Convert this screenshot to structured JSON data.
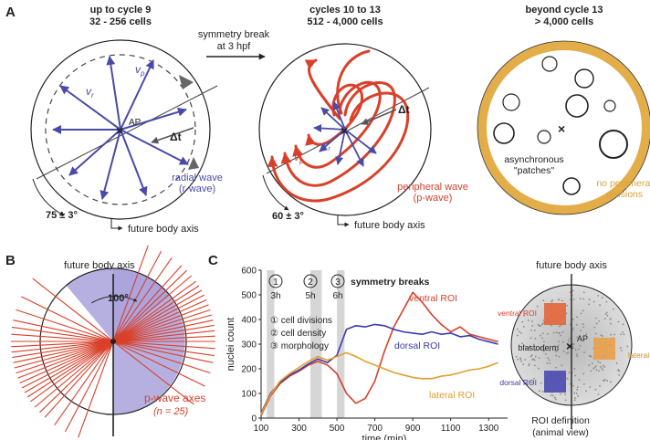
{
  "panel_a": {
    "letter": "A",
    "stage1": {
      "title": "up to cycle 9",
      "subtitle": "32 - 256 cells",
      "vr": "v",
      "vr_sub": "r",
      "vp": "v",
      "vp_sub": "p",
      "ap": "AP",
      "dt": "Δt",
      "wave1": "radial wave",
      "wave2": "(r-wave)",
      "angle": "75 ± 3°",
      "axis": "future body axis"
    },
    "transition": {
      "line1": "symmetry break",
      "line2": "at 3 hpf"
    },
    "stage2": {
      "title": "cycles 10 to 13",
      "subtitle": "512 - 4,000 cells",
      "vr": "v",
      "vr_sub": "r",
      "vp": "v",
      "vp_sub": "p",
      "dt": "Δt",
      "wave1": "peripheral wave",
      "wave2": "(p-wave)",
      "angle": "60 ± 3°",
      "axis": "future body axis"
    },
    "stage3": {
      "title": "beyond cycle 13",
      "subtitle": "> 4,000 cells",
      "patch1": "asynchronous",
      "patch2": "\"patches\"",
      "nodiv1": "no peripheral",
      "nodiv2": "divisions"
    }
  },
  "panel_b": {
    "letter": "B",
    "axis": "future body axis",
    "angle": "100°",
    "label": "p-wave axes",
    "n": "(n = 25)"
  },
  "panel_c": {
    "letter": "C",
    "markers": [
      {
        "num": "1",
        "time": "3h"
      },
      {
        "num": "2",
        "time": "5h"
      },
      {
        "num": "3",
        "time": "6h"
      }
    ],
    "symmetry": "symmetry breaks",
    "legend": [
      "① cell divisions",
      "② cell density",
      "③ morphology"
    ],
    "roi_definition": {
      "axis": "future body axis",
      "ventral": "ventral ROI",
      "lateral": "lateral ROI",
      "dorsal": "dorsal ROI",
      "ap": "AP",
      "blastoderm": "blastoderm",
      "caption1": "ROI definition",
      "caption2": "(animal view)"
    }
  },
  "chart_data": {
    "type": "line",
    "title": "",
    "xlabel": "time (min)",
    "ylabel": "nuclei count",
    "xlim": [
      100,
      1400
    ],
    "ylim": [
      0,
      600
    ],
    "xticks": [
      100,
      300,
      500,
      700,
      900,
      1100,
      1300
    ],
    "yticks": [
      0,
      100,
      200,
      300,
      400,
      500,
      600
    ],
    "shaded_bands": [
      [
        130,
        170
      ],
      [
        360,
        420
      ],
      [
        500,
        540
      ]
    ],
    "series": [
      {
        "name": "ventral ROI",
        "color": "#d8402a",
        "x": [
          100,
          150,
          200,
          250,
          300,
          350,
          400,
          450,
          500,
          550,
          600,
          650,
          700,
          750,
          800,
          850,
          900,
          950,
          1000,
          1050,
          1100,
          1150,
          1200,
          1250,
          1300,
          1350
        ],
        "y": [
          10,
          90,
          140,
          170,
          190,
          215,
          230,
          215,
          180,
          100,
          60,
          80,
          150,
          270,
          370,
          440,
          510,
          470,
          420,
          380,
          350,
          370,
          340,
          330,
          320,
          310
        ]
      },
      {
        "name": "dorsal ROI",
        "color": "#3a3ab0",
        "x": [
          100,
          150,
          200,
          250,
          300,
          350,
          400,
          450,
          500,
          550,
          600,
          650,
          700,
          750,
          800,
          850,
          900,
          950,
          1000,
          1050,
          1100,
          1150,
          1200,
          1250,
          1300,
          1350
        ],
        "y": [
          20,
          100,
          145,
          175,
          195,
          220,
          240,
          225,
          255,
          360,
          375,
          370,
          380,
          375,
          360,
          350,
          345,
          340,
          350,
          340,
          345,
          330,
          335,
          320,
          310,
          300
        ]
      },
      {
        "name": "lateral ROI",
        "color": "#e0a030",
        "x": [
          100,
          150,
          200,
          250,
          300,
          350,
          400,
          450,
          500,
          550,
          600,
          650,
          700,
          750,
          800,
          850,
          900,
          950,
          1000,
          1050,
          1100,
          1150,
          1200,
          1250,
          1300,
          1350
        ],
        "y": [
          15,
          95,
          150,
          180,
          205,
          230,
          250,
          235,
          250,
          265,
          250,
          230,
          215,
          200,
          185,
          175,
          165,
          160,
          160,
          170,
          175,
          185,
          195,
          200,
          210,
          225
        ]
      }
    ]
  }
}
